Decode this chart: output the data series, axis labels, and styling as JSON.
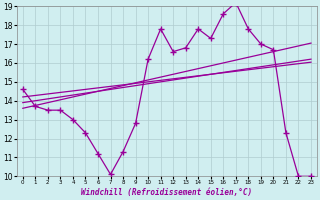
{
  "xlabel": "Windchill (Refroidissement éolien,°C)",
  "background_color": "#d0eef0",
  "grid_color": "#b0ccd0",
  "line_color": "#990099",
  "x": [
    0,
    1,
    2,
    3,
    4,
    5,
    6,
    7,
    8,
    9,
    10,
    11,
    12,
    13,
    14,
    15,
    16,
    17,
    18,
    19,
    20,
    21,
    22,
    23
  ],
  "y_main": [
    14.6,
    13.7,
    13.5,
    13.5,
    13.0,
    12.3,
    11.2,
    10.1,
    11.3,
    12.8,
    16.2,
    17.8,
    16.6,
    16.8,
    17.8,
    17.3,
    18.6,
    19.2,
    17.8,
    17.0,
    16.7,
    12.3,
    10.0,
    10.0
  ],
  "y_reg1": [
    13.6,
    13.75,
    13.9,
    14.05,
    14.2,
    14.35,
    14.5,
    14.65,
    14.8,
    14.95,
    15.1,
    15.25,
    15.4,
    15.55,
    15.7,
    15.85,
    16.0,
    16.15,
    16.3,
    16.45,
    16.6,
    16.75,
    16.9,
    17.05
  ],
  "y_reg2": [
    13.9,
    14.0,
    14.1,
    14.2,
    14.3,
    14.4,
    14.5,
    14.6,
    14.7,
    14.8,
    14.9,
    15.0,
    15.1,
    15.2,
    15.3,
    15.4,
    15.5,
    15.6,
    15.7,
    15.8,
    15.9,
    16.0,
    16.1,
    16.2
  ],
  "y_reg3": [
    14.2,
    14.28,
    14.36,
    14.44,
    14.52,
    14.6,
    14.68,
    14.76,
    14.84,
    14.92,
    15.0,
    15.08,
    15.16,
    15.24,
    15.32,
    15.4,
    15.48,
    15.56,
    15.64,
    15.72,
    15.8,
    15.88,
    15.96,
    16.04
  ],
  "ylim": [
    10,
    19
  ],
  "xlim": [
    -0.5,
    23.5
  ],
  "yticks": [
    10,
    11,
    12,
    13,
    14,
    15,
    16,
    17,
    18,
    19
  ],
  "xticks": [
    0,
    1,
    2,
    3,
    4,
    5,
    6,
    7,
    8,
    9,
    10,
    11,
    12,
    13,
    14,
    15,
    16,
    17,
    18,
    19,
    20,
    21,
    22,
    23
  ]
}
